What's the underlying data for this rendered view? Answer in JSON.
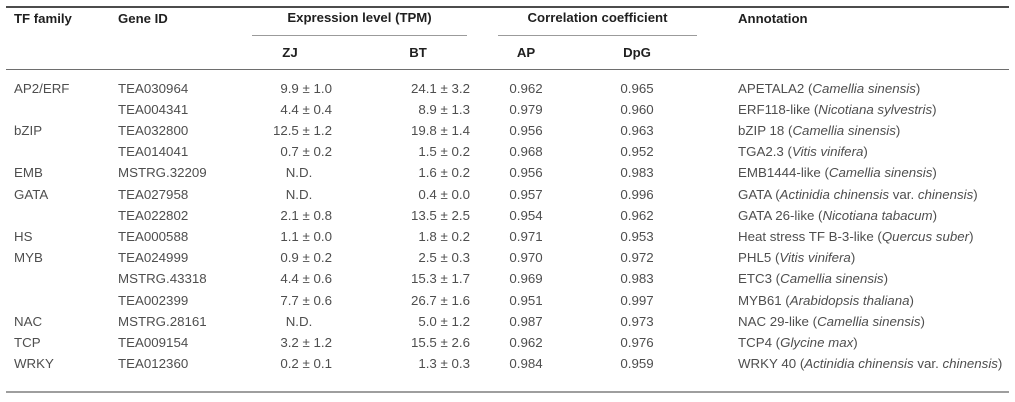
{
  "table": {
    "headers": {
      "tf_family": "TF family",
      "gene_id": "Gene ID",
      "expression_group": "Expression level (TPM)",
      "correlation_group": "Correlation coefficient",
      "annotation": "Annotation",
      "sub": {
        "zj": "ZJ",
        "bt": "BT",
        "ap": "AP",
        "dpg": "DpG"
      }
    },
    "rows": [
      {
        "tf_family": "AP2/ERF",
        "gene_id": "TEA030964",
        "zj": "9.9 ± 1.0",
        "bt": "24.1 ± 3.2",
        "ap": "0.962",
        "dpg": "0.965",
        "annotation": [
          {
            "text": "APETALA2 (",
            "italic": false
          },
          {
            "text": "Camellia sinensis",
            "italic": true
          },
          {
            "text": ")",
            "italic": false
          }
        ]
      },
      {
        "tf_family": "",
        "gene_id": "TEA004341",
        "zj": "4.4 ± 0.4",
        "bt": "8.9 ± 1.3",
        "ap": "0.979",
        "dpg": "0.960",
        "annotation": [
          {
            "text": "ERF118-like (",
            "italic": false
          },
          {
            "text": "Nicotiana sylvestris",
            "italic": true
          },
          {
            "text": ")",
            "italic": false
          }
        ]
      },
      {
        "tf_family": "bZIP",
        "gene_id": "TEA032800",
        "zj": "12.5 ± 1.2",
        "bt": "19.8 ± 1.4",
        "ap": "0.956",
        "dpg": "0.963",
        "annotation": [
          {
            "text": "bZIP 18 (",
            "italic": false
          },
          {
            "text": "Camellia sinensis",
            "italic": true
          },
          {
            "text": ")",
            "italic": false
          }
        ]
      },
      {
        "tf_family": "",
        "gene_id": "TEA014041",
        "zj": "0.7 ± 0.2",
        "bt": "1.5 ± 0.2",
        "ap": "0.968",
        "dpg": "0.952",
        "annotation": [
          {
            "text": "TGA2.3 (",
            "italic": false
          },
          {
            "text": "Vitis vinifera",
            "italic": true
          },
          {
            "text": ")",
            "italic": false
          }
        ]
      },
      {
        "tf_family": "EMB",
        "gene_id": "MSTRG.32209",
        "zj": "N.D.",
        "bt": "1.6 ± 0.2",
        "ap": "0.956",
        "dpg": "0.983",
        "annotation": [
          {
            "text": "EMB1444-like (",
            "italic": false
          },
          {
            "text": "Camellia sinensis",
            "italic": true
          },
          {
            "text": ")",
            "italic": false
          }
        ]
      },
      {
        "tf_family": "GATA",
        "gene_id": "TEA027958",
        "zj": "N.D.",
        "bt": "0.4 ± 0.0",
        "ap": "0.957",
        "dpg": "0.996",
        "annotation": [
          {
            "text": "GATA (",
            "italic": false
          },
          {
            "text": "Actinidia chinensis",
            "italic": true
          },
          {
            "text": " var. ",
            "italic": false
          },
          {
            "text": "chinensis",
            "italic": true
          },
          {
            "text": ")",
            "italic": false
          }
        ]
      },
      {
        "tf_family": "",
        "gene_id": "TEA022802",
        "zj": "2.1 ± 0.8",
        "bt": "13.5 ± 2.5",
        "ap": "0.954",
        "dpg": "0.962",
        "annotation": [
          {
            "text": "GATA 26-like (",
            "italic": false
          },
          {
            "text": "Nicotiana tabacum",
            "italic": true
          },
          {
            "text": ")",
            "italic": false
          }
        ]
      },
      {
        "tf_family": "HS",
        "gene_id": "TEA000588",
        "zj": "1.1 ± 0.0",
        "bt": "1.8 ± 0.2",
        "ap": "0.971",
        "dpg": "0.953",
        "annotation": [
          {
            "text": "Heat stress TF B-3-like (",
            "italic": false
          },
          {
            "text": "Quercus suber",
            "italic": true
          },
          {
            "text": ")",
            "italic": false
          }
        ]
      },
      {
        "tf_family": "MYB",
        "gene_id": "TEA024999",
        "zj": "0.9 ± 0.2",
        "bt": "2.5 ± 0.3",
        "ap": "0.970",
        "dpg": "0.972",
        "annotation": [
          {
            "text": "PHL5 (",
            "italic": false
          },
          {
            "text": "Vitis vinifera",
            "italic": true
          },
          {
            "text": ")",
            "italic": false
          }
        ]
      },
      {
        "tf_family": "",
        "gene_id": "MSTRG.43318",
        "zj": "4.4 ± 0.6",
        "bt": "15.3 ± 1.7",
        "ap": "0.969",
        "dpg": "0.983",
        "annotation": [
          {
            "text": "ETC3 (",
            "italic": false
          },
          {
            "text": "Camellia sinensis",
            "italic": true
          },
          {
            "text": ")",
            "italic": false
          }
        ]
      },
      {
        "tf_family": "",
        "gene_id": "TEA002399",
        "zj": "7.7 ± 0.6",
        "bt": "26.7 ± 1.6",
        "ap": "0.951",
        "dpg": "0.997",
        "annotation": [
          {
            "text": "MYB61 (",
            "italic": false
          },
          {
            "text": "Arabidopsis thaliana",
            "italic": true
          },
          {
            "text": ")",
            "italic": false
          }
        ]
      },
      {
        "tf_family": "NAC",
        "gene_id": "MSTRG.28161",
        "zj": "N.D.",
        "bt": "5.0 ± 1.2",
        "ap": "0.987",
        "dpg": "0.973",
        "annotation": [
          {
            "text": "NAC 29-like (",
            "italic": false
          },
          {
            "text": "Camellia sinensis",
            "italic": true
          },
          {
            "text": ")",
            "italic": false
          }
        ]
      },
      {
        "tf_family": "TCP",
        "gene_id": "TEA009154",
        "zj": "3.2 ± 1.2",
        "bt": "15.5 ± 2.6",
        "ap": "0.962",
        "dpg": "0.976",
        "annotation": [
          {
            "text": "TCP4 (",
            "italic": false
          },
          {
            "text": "Glycine max",
            "italic": true
          },
          {
            "text": ")",
            "italic": false
          }
        ]
      },
      {
        "tf_family": "WRKY",
        "gene_id": "TEA012360",
        "zj": "0.2 ± 0.1",
        "bt": "1.3 ± 0.3",
        "ap": "0.984",
        "dpg": "0.959",
        "annotation": [
          {
            "text": "WRKY 40 (",
            "italic": false
          },
          {
            "text": "Actinidia chinensis",
            "italic": true
          },
          {
            "text": " var. ",
            "italic": false
          },
          {
            "text": "chinensis",
            "italic": true
          },
          {
            "text": ")",
            "italic": false
          }
        ]
      }
    ]
  }
}
